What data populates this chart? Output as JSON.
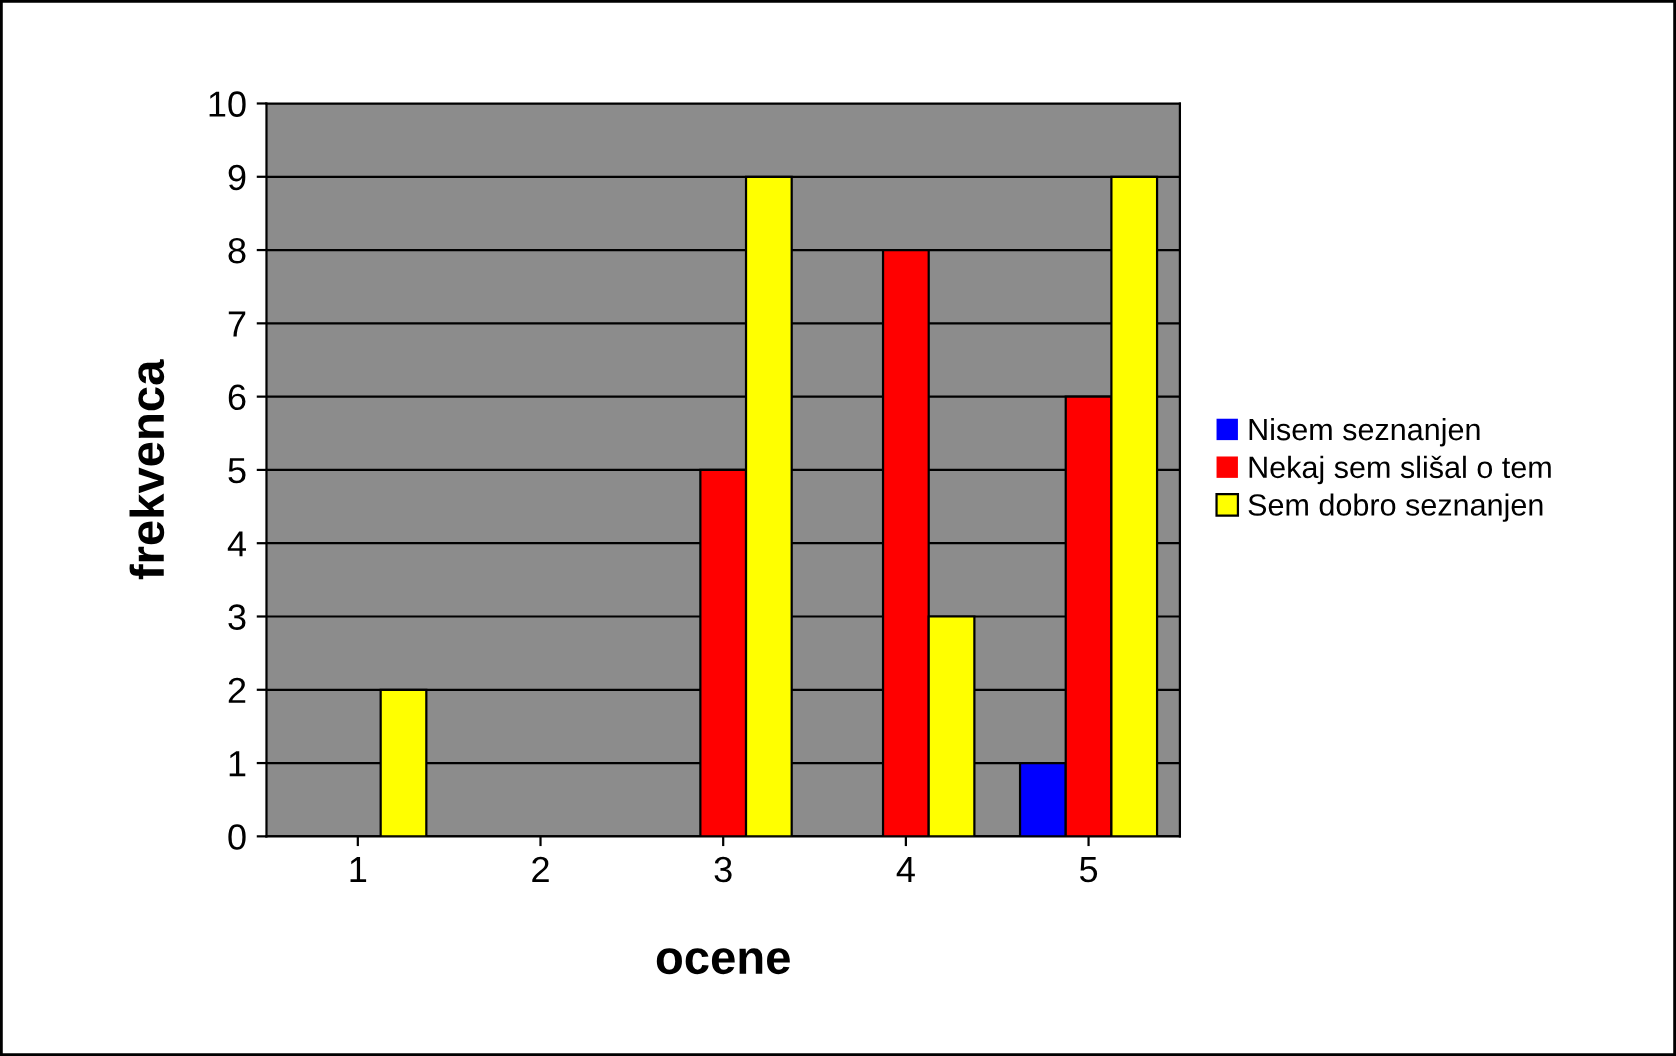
{
  "chart_data": {
    "type": "bar",
    "xlabel": "ocene",
    "ylabel": "frekvenca",
    "categories": [
      "1",
      "2",
      "3",
      "4",
      "5"
    ],
    "series": [
      {
        "name": "Nisem seznanjen",
        "color": "#0000ff",
        "values": [
          0,
          0,
          0,
          0,
          1
        ]
      },
      {
        "name": "Nekaj sem slišal o tem",
        "color": "#ff0000",
        "values": [
          0,
          0,
          5,
          8,
          6
        ]
      },
      {
        "name": "Sem dobro seznanjen",
        "color": "#ffff00",
        "values": [
          2,
          0,
          9,
          3,
          9
        ]
      }
    ],
    "ylim": [
      0,
      10
    ],
    "yticks": [
      0,
      1,
      2,
      3,
      4,
      5,
      6,
      7,
      8,
      9,
      10
    ],
    "grid": "y",
    "legend": "right"
  }
}
